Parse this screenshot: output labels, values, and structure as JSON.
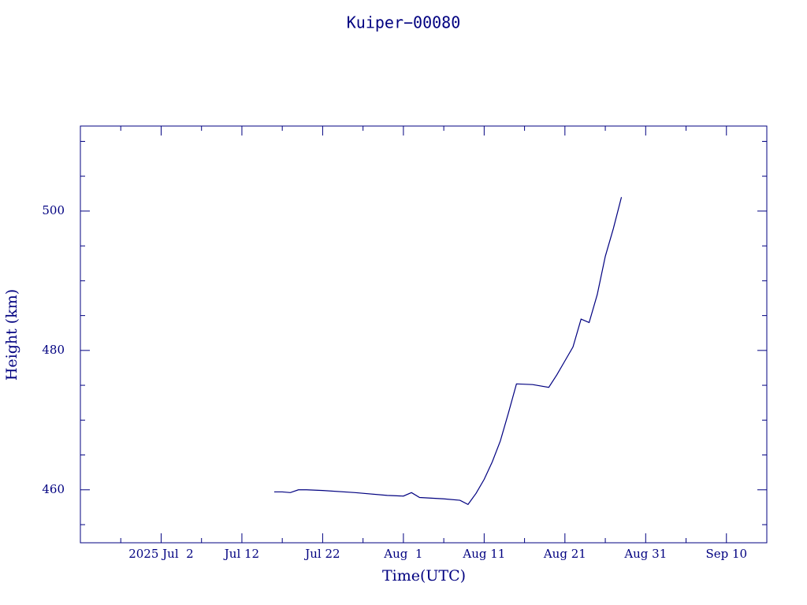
{
  "chart_data": {
    "type": "line",
    "title": "Kuiper−00080",
    "x_label": "Time(UTC)",
    "y_label": "Height (km)",
    "xlim": [
      "2025-06-22",
      "2025-09-15"
    ],
    "ylim": [
      452.4,
      512.2
    ],
    "xticks": [
      {
        "value": "2025-07-02",
        "label": "2025 Jul  2"
      },
      {
        "value": "2025-07-12",
        "label": "Jul 12"
      },
      {
        "value": "2025-07-22",
        "label": "Jul 22"
      },
      {
        "value": "2025-08-01",
        "label": "Aug  1"
      },
      {
        "value": "2025-08-11",
        "label": "Aug 11"
      },
      {
        "value": "2025-08-21",
        "label": "Aug 21"
      },
      {
        "value": "2025-08-31",
        "label": "Aug 31"
      },
      {
        "value": "2025-09-10",
        "label": "Sep 10"
      }
    ],
    "xminorticks": [
      "2025-06-27",
      "2025-07-07",
      "2025-07-17",
      "2025-07-27",
      "2025-08-06",
      "2025-08-16",
      "2025-08-26",
      "2025-09-05"
    ],
    "yticks": [
      460,
      480,
      500
    ],
    "yminorticks": [
      455,
      465,
      470,
      475,
      485,
      490,
      495,
      505,
      510
    ],
    "series": [
      {
        "color": "#000080",
        "x": [
          "2025-07-16",
          "2025-07-17",
          "2025-07-18",
          "2025-07-19",
          "2025-07-20",
          "2025-07-22",
          "2025-07-26",
          "2025-07-30",
          "2025-08-01",
          "2025-08-02",
          "2025-08-03",
          "2025-08-06",
          "2025-08-08",
          "2025-08-09",
          "2025-08-10",
          "2025-08-11",
          "2025-08-12",
          "2025-08-13",
          "2025-08-14",
          "2025-08-15",
          "2025-08-17",
          "2025-08-19",
          "2025-08-20",
          "2025-08-21",
          "2025-08-22",
          "2025-08-23",
          "2025-08-24",
          "2025-08-25",
          "2025-08-26",
          "2025-08-27",
          "2025-08-28"
        ],
        "values": [
          459.7,
          459.7,
          459.6,
          460.0,
          460.0,
          459.9,
          459.6,
          459.2,
          459.1,
          459.6,
          458.9,
          458.7,
          458.5,
          457.9,
          459.5,
          461.5,
          464.0,
          467.0,
          471.0,
          475.2,
          475.1,
          474.7,
          476.5,
          478.5,
          480.5,
          484.5,
          484.0,
          488.0,
          493.5,
          497.5,
          502.0
        ]
      }
    ]
  }
}
